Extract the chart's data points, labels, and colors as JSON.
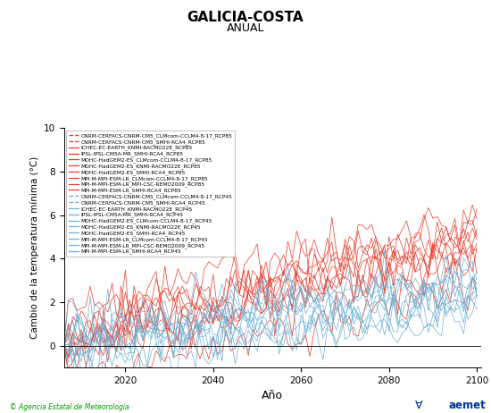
{
  "title": "GALICIA-COSTA",
  "subtitle": "ANUAL",
  "xlabel": "Año",
  "ylabel": "Cambio de la temperatura mínima (°C)",
  "xlim": [
    2006,
    2101
  ],
  "ylim": [
    -1.0,
    10.0
  ],
  "yticks": [
    0,
    2,
    4,
    6,
    8,
    10
  ],
  "xticks": [
    2020,
    2040,
    2060,
    2080,
    2100
  ],
  "legend_rcp85": [
    "CNRM-CERFACS-CNRM-CM5_CLMcom-CCLM4-8-17_RCP85",
    "CNRM-CERFACS-CNRM-CM5_SMHI-RCA4_RCP85",
    "ICHEC-EC-EARTH_KNMI-RACMO22E_RCP85",
    "IPSL-IPSL-CM5A-MR_SMHI-RCA4_RCP85",
    "MOHC-HadGEM2-ES_CLMcom-CCLM4-8-17_RCP85",
    "MOHC-HadGEM2-ES_KNMI-RACMO22E_RCP85",
    "MOHC-HadGEM2-ES_SMHI-RCA4_RCP85",
    "MPI-M-MPI-ESM-LR_CLMcom-CCLM4-8-17_RCP85",
    "MPI-M-MPI-ESM-LR_MPI-CSC-REMO2009_RCP85",
    "MPI-M-MPI-ESM-LR_SMHI-RCA4_RCP85"
  ],
  "legend_rcp45": [
    "CNRM-CERFACS-CNRM-CM5_CLMcom-CCLM4-8-17_RCP45",
    "CNRM-CERFACS-CNRM-CM5_SMHI-RCA4_RCP45",
    "ICHEC-EC-EARTH_KNMI-RACMO22E_RCP45",
    "IPSL-IPSL-CM5A-MR_SMHI-RCA4_RCP45",
    "MOHC-HadGEM2-ES_CLMcom-CCLM4-8-17_RCP45",
    "MOHC-HadGEM2-ES_KNMI-RACMO22E_RCP45",
    "MOHC-HadGEM2-ES_SMHI-RCA4_RCP45",
    "MPI-M-MPI-ESM-LR_CLMcom-CCLM4-8-17_RCP45",
    "MPI-M-MPI-ESM-LR_MPI-CSC-REMO2009_RCP45",
    "MPI-M-MPI-ESM-LR_SMHI-RCA4_RCP45"
  ],
  "color_rcp85": "#e8392a",
  "color_rcp45": "#6ab0d4",
  "background_color": "#ffffff",
  "footer_left": "© Agencia Estatal de Meteorología",
  "footer_left_color": "#009900",
  "seed": 12,
  "n_years": 95,
  "start_year": 2006,
  "trend_85": [
    0.047,
    0.043,
    0.041,
    0.052,
    0.056,
    0.05,
    0.058,
    0.044,
    0.046,
    0.049
  ],
  "trend_45": [
    0.025,
    0.023,
    0.021,
    0.028,
    0.03,
    0.026,
    0.024,
    0.022,
    0.029,
    0.025
  ]
}
